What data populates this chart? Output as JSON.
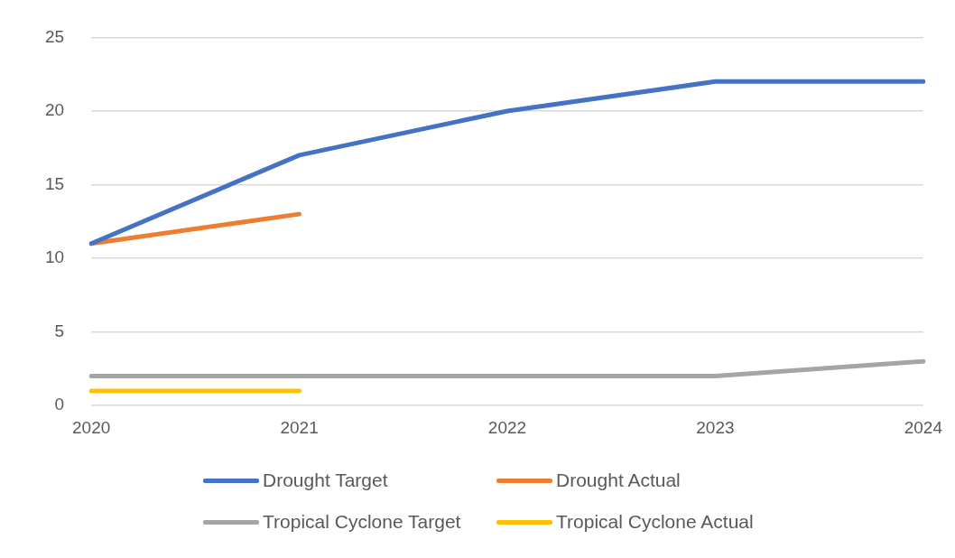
{
  "chart_data": {
    "type": "line",
    "categories": [
      "2020",
      "2021",
      "2022",
      "2023",
      "2024"
    ],
    "series": [
      {
        "name": "Drought Target",
        "color": "#4472c4",
        "values": [
          11,
          17,
          20,
          22,
          22
        ]
      },
      {
        "name": "Drought Actual",
        "color": "#ed7d31",
        "values": [
          11,
          13,
          null,
          null,
          null
        ]
      },
      {
        "name": "Tropical Cyclone Target",
        "color": "#a5a5a5",
        "values": [
          2,
          2,
          2,
          2,
          3
        ]
      },
      {
        "name": "Tropical Cyclone Actual",
        "color": "#ffc000",
        "values": [
          1,
          1,
          null,
          null,
          null
        ]
      }
    ],
    "ylim": [
      0,
      25
    ],
    "yticks": [
      0,
      5,
      10,
      15,
      20,
      25
    ],
    "grid": "y",
    "legend": "bottom",
    "marker": "none",
    "line_style": "solid"
  }
}
